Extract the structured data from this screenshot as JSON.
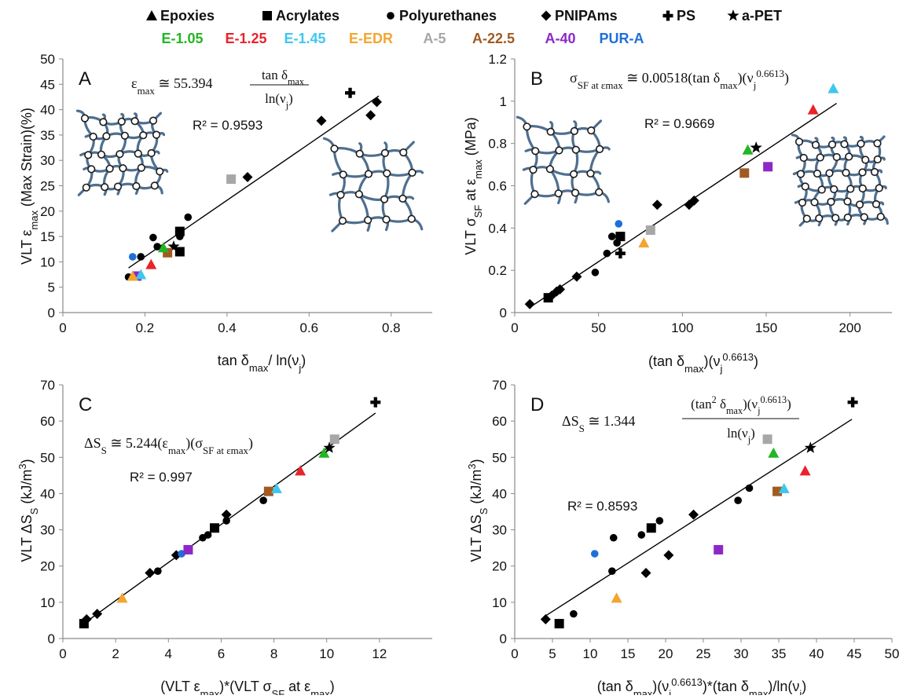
{
  "legend": {
    "shapes": [
      {
        "marker": "triangle",
        "label": "Epoxies"
      },
      {
        "marker": "square",
        "label": "Acrylates"
      },
      {
        "marker": "circle",
        "label": "Polyurethanes"
      },
      {
        "marker": "diamond",
        "label": "PNIPAms"
      },
      {
        "marker": "cross",
        "label": "PS"
      },
      {
        "marker": "star",
        "label": "a-PET"
      }
    ],
    "materials": [
      {
        "label": "E-1.05",
        "color": "#22b622"
      },
      {
        "label": "E-1.25",
        "color": "#e8232a"
      },
      {
        "label": "E-1.45",
        "color": "#3fc6ef"
      },
      {
        "label": "E-EDR",
        "color": "#f3a530"
      },
      {
        "label": "A-5",
        "color": "#a7a7a7"
      },
      {
        "label": "A-22.5",
        "color": "#a25a21"
      },
      {
        "label": "A-40",
        "color": "#8d28c7"
      },
      {
        "label": "PUR-A",
        "color": "#1f6fd9"
      }
    ]
  },
  "icons": {
    "network_sparse": "polymer-network-sparse-icon",
    "network_dense": "polymer-network-dense-icon"
  },
  "chart_data": [
    {
      "type": "scatter",
      "panel": "A",
      "xlabel": "tan δmax/ ln(νj)",
      "ylabel": "VLT εmax (Max Strain)(%)",
      "xlim": [
        0,
        0.9
      ],
      "ylim": [
        0,
        50
      ],
      "xticks": [
        0,
        0.2,
        0.4,
        0.6,
        0.8
      ],
      "yticks": [
        0,
        5,
        10,
        15,
        20,
        25,
        30,
        35,
        40,
        45,
        50
      ],
      "xtick_labels": [
        "0",
        "0.2",
        "0.4",
        "0.6",
        "0.8"
      ],
      "ytick_labels": [
        "0",
        "5",
        "10",
        "15",
        "20",
        "25",
        "30",
        "35",
        "40",
        "45",
        "50"
      ],
      "r2": "R² = 0.9593",
      "equation": "εmax ≅ 55.394 tan δmax / ln(νj)",
      "trendline": [
        [
          0.16,
          8.8
        ],
        [
          0.77,
          42.7
        ]
      ],
      "points": [
        {
          "x": 0.16,
          "y": 7.0,
          "m": "circle",
          "c": "#000000"
        },
        {
          "x": 0.19,
          "y": 11.0,
          "m": "circle",
          "c": "#000000"
        },
        {
          "x": 0.22,
          "y": 14.8,
          "m": "circle",
          "c": "#000000"
        },
        {
          "x": 0.23,
          "y": 13.0,
          "m": "circle",
          "c": "#000000"
        },
        {
          "x": 0.285,
          "y": 15.0,
          "m": "circle",
          "c": "#000000"
        },
        {
          "x": 0.305,
          "y": 18.8,
          "m": "circle",
          "c": "#000000"
        },
        {
          "x": 0.45,
          "y": 26.7,
          "m": "diamond",
          "c": "#000000"
        },
        {
          "x": 0.63,
          "y": 37.8,
          "m": "diamond",
          "c": "#000000"
        },
        {
          "x": 0.75,
          "y": 38.9,
          "m": "diamond",
          "c": "#000000"
        },
        {
          "x": 0.765,
          "y": 41.5,
          "m": "diamond",
          "c": "#000000"
        },
        {
          "x": 0.7,
          "y": 43.3,
          "m": "cross",
          "c": "#000000"
        },
        {
          "x": 0.27,
          "y": 13.0,
          "m": "star",
          "c": "#000000"
        },
        {
          "x": 0.285,
          "y": 16.0,
          "m": "square",
          "c": "#000000"
        },
        {
          "x": 0.285,
          "y": 12.0,
          "m": "square",
          "c": "#000000"
        },
        {
          "x": 0.41,
          "y": 26.3,
          "m": "square",
          "c": "#a7a7a7"
        },
        {
          "x": 0.255,
          "y": 11.8,
          "m": "square",
          "c": "#a25a21"
        },
        {
          "x": 0.18,
          "y": 7.2,
          "m": "square",
          "c": "#8d28c7"
        },
        {
          "x": 0.17,
          "y": 11.0,
          "m": "circle",
          "c": "#1f6fd9"
        },
        {
          "x": 0.245,
          "y": 12.8,
          "m": "triangle",
          "c": "#22b622"
        },
        {
          "x": 0.215,
          "y": 9.5,
          "m": "triangle",
          "c": "#e8232a"
        },
        {
          "x": 0.19,
          "y": 7.5,
          "m": "triangle",
          "c": "#3fc6ef"
        },
        {
          "x": 0.17,
          "y": 7.2,
          "m": "triangle",
          "c": "#f3a530"
        }
      ]
    },
    {
      "type": "scatter",
      "panel": "B",
      "xlabel": "(tan δmax)(νj^0.6613)",
      "ylabel": "VLT σSF at εmax (MPa)",
      "xlim": [
        0,
        225
      ],
      "ylim": [
        0,
        1.2
      ],
      "xticks": [
        0,
        50,
        100,
        150,
        200
      ],
      "yticks": [
        0,
        0.2,
        0.4,
        0.6,
        0.8,
        1,
        1.2
      ],
      "xtick_labels": [
        "0",
        "50",
        "100",
        "150",
        "200"
      ],
      "ytick_labels": [
        "0",
        "0.2",
        "0.4",
        "0.6",
        "0.8",
        "1",
        "1.2"
      ],
      "r2": "R² = 0.9669",
      "equation": "σSF at εmax ≅ 0.00518(tan δmax)(νj^0.6613)",
      "trendline": [
        [
          10,
          0.03
        ],
        [
          192,
          0.99
        ]
      ],
      "points": [
        {
          "x": 9,
          "y": 0.04,
          "m": "diamond",
          "c": "#000000"
        },
        {
          "x": 22,
          "y": 0.08,
          "m": "diamond",
          "c": "#000000"
        },
        {
          "x": 25,
          "y": 0.1,
          "m": "diamond",
          "c": "#000000"
        },
        {
          "x": 27,
          "y": 0.11,
          "m": "diamond",
          "c": "#000000"
        },
        {
          "x": 37,
          "y": 0.17,
          "m": "diamond",
          "c": "#000000"
        },
        {
          "x": 85,
          "y": 0.51,
          "m": "diamond",
          "c": "#000000"
        },
        {
          "x": 104,
          "y": 0.51,
          "m": "diamond",
          "c": "#000000"
        },
        {
          "x": 107,
          "y": 0.53,
          "m": "diamond",
          "c": "#000000"
        },
        {
          "x": 20,
          "y": 0.07,
          "m": "square",
          "c": "#000000"
        },
        {
          "x": 48,
          "y": 0.19,
          "m": "circle",
          "c": "#000000"
        },
        {
          "x": 55,
          "y": 0.28,
          "m": "circle",
          "c": "#000000"
        },
        {
          "x": 58,
          "y": 0.36,
          "m": "circle",
          "c": "#000000"
        },
        {
          "x": 61,
          "y": 0.33,
          "m": "circle",
          "c": "#000000"
        },
        {
          "x": 63,
          "y": 0.36,
          "m": "square",
          "c": "#000000"
        },
        {
          "x": 63,
          "y": 0.28,
          "m": "cross",
          "c": "#000000"
        },
        {
          "x": 62,
          "y": 0.42,
          "m": "circle",
          "c": "#1f6fd9"
        },
        {
          "x": 77,
          "y": 0.33,
          "m": "triangle",
          "c": "#f3a530"
        },
        {
          "x": 81,
          "y": 0.39,
          "m": "square",
          "c": "#a7a7a7"
        },
        {
          "x": 137,
          "y": 0.66,
          "m": "square",
          "c": "#a25a21"
        },
        {
          "x": 139,
          "y": 0.77,
          "m": "triangle",
          "c": "#22b622"
        },
        {
          "x": 144,
          "y": 0.78,
          "m": "star",
          "c": "#000000"
        },
        {
          "x": 151,
          "y": 0.69,
          "m": "square",
          "c": "#8d28c7"
        },
        {
          "x": 178,
          "y": 0.96,
          "m": "triangle",
          "c": "#e8232a"
        },
        {
          "x": 190,
          "y": 1.06,
          "m": "triangle",
          "c": "#3fc6ef"
        }
      ]
    },
    {
      "type": "scatter",
      "panel": "C",
      "xlabel": "(VLT εmax)*(VLT σSF at εmax)",
      "ylabel": "VLT ΔSS (kJ/m³)",
      "xlim": [
        0,
        14
      ],
      "ylim": [
        0,
        70
      ],
      "xticks": [
        0,
        2,
        4,
        6,
        8,
        10,
        12
      ],
      "yticks": [
        0,
        10,
        20,
        30,
        40,
        50,
        60,
        70
      ],
      "xtick_labels": [
        "0",
        "2",
        "4",
        "6",
        "8",
        "10",
        "12"
      ],
      "ytick_labels": [
        "0",
        "10",
        "20",
        "30",
        "40",
        "50",
        "60",
        "70"
      ],
      "r2": "R² = 0.997",
      "equation": "ΔSS ≅ 5.244(εmax)(σSF at εmax)",
      "trendline": [
        [
          0.75,
          3.9
        ],
        [
          11.85,
          62.2
        ]
      ],
      "points": [
        {
          "x": 0.8,
          "y": 4.1,
          "m": "square",
          "c": "#000000"
        },
        {
          "x": 0.9,
          "y": 5.3,
          "m": "diamond",
          "c": "#000000"
        },
        {
          "x": 1.3,
          "y": 6.8,
          "m": "diamond",
          "c": "#000000"
        },
        {
          "x": 2.25,
          "y": 11.2,
          "m": "triangle",
          "c": "#f3a530"
        },
        {
          "x": 3.3,
          "y": 18.1,
          "m": "diamond",
          "c": "#000000"
        },
        {
          "x": 3.6,
          "y": 18.6,
          "m": "circle",
          "c": "#000000"
        },
        {
          "x": 4.3,
          "y": 23.0,
          "m": "diamond",
          "c": "#000000"
        },
        {
          "x": 4.5,
          "y": 23.4,
          "m": "circle",
          "c": "#1f6fd9"
        },
        {
          "x": 4.75,
          "y": 24.5,
          "m": "square",
          "c": "#8d28c7"
        },
        {
          "x": 5.3,
          "y": 27.8,
          "m": "circle",
          "c": "#000000"
        },
        {
          "x": 5.5,
          "y": 28.6,
          "m": "circle",
          "c": "#000000"
        },
        {
          "x": 5.75,
          "y": 30.5,
          "m": "square",
          "c": "#000000"
        },
        {
          "x": 6.2,
          "y": 32.5,
          "m": "circle",
          "c": "#000000"
        },
        {
          "x": 6.2,
          "y": 34.2,
          "m": "diamond",
          "c": "#000000"
        },
        {
          "x": 7.6,
          "y": 38.1,
          "m": "circle",
          "c": "#000000"
        },
        {
          "x": 7.8,
          "y": 40.6,
          "m": "square",
          "c": "#a25a21"
        },
        {
          "x": 8.1,
          "y": 41.4,
          "m": "triangle",
          "c": "#3fc6ef"
        },
        {
          "x": 9.0,
          "y": 46.3,
          "m": "triangle",
          "c": "#e8232a"
        },
        {
          "x": 9.9,
          "y": 51.2,
          "m": "triangle",
          "c": "#22b622"
        },
        {
          "x": 10.1,
          "y": 52.6,
          "m": "star",
          "c": "#000000"
        },
        {
          "x": 10.3,
          "y": 55.0,
          "m": "square",
          "c": "#a7a7a7"
        },
        {
          "x": 11.85,
          "y": 65.2,
          "m": "cross",
          "c": "#000000"
        }
      ]
    },
    {
      "type": "scatter",
      "panel": "D",
      "xlabel": "(tan δmax)(νj^0.6613)*(tan δmax)/ln(νj)",
      "ylabel": "VLT ΔSS (kJ/m³)",
      "xlim": [
        0,
        50
      ],
      "ylim": [
        0,
        70
      ],
      "xticks": [
        0,
        5,
        10,
        15,
        20,
        25,
        30,
        35,
        40,
        45,
        50
      ],
      "yticks": [
        0,
        10,
        20,
        30,
        40,
        50,
        60,
        70
      ],
      "xtick_labels": [
        "0",
        "5",
        "10",
        "15",
        "20",
        "25",
        "30",
        "35",
        "40",
        "45",
        "50"
      ],
      "ytick_labels": [
        "0",
        "10",
        "20",
        "30",
        "40",
        "50",
        "60",
        "70"
      ],
      "r2": "R² = 0.8593",
      "equation": "ΔSS ≅ 1.344 (tan² δmax)(νj^0.6613) / ln(νj)",
      "trendline": [
        [
          4.2,
          6.4
        ],
        [
          44.7,
          60.5
        ]
      ],
      "points": [
        {
          "x": 4.1,
          "y": 5.3,
          "m": "diamond",
          "c": "#000000"
        },
        {
          "x": 5.9,
          "y": 4.1,
          "m": "square",
          "c": "#000000"
        },
        {
          "x": 7.8,
          "y": 6.8,
          "m": "circle",
          "c": "#000000"
        },
        {
          "x": 10.6,
          "y": 23.4,
          "m": "circle",
          "c": "#1f6fd9"
        },
        {
          "x": 12.9,
          "y": 18.6,
          "m": "circle",
          "c": "#000000"
        },
        {
          "x": 13.1,
          "y": 27.8,
          "m": "circle",
          "c": "#000000"
        },
        {
          "x": 13.5,
          "y": 11.2,
          "m": "triangle",
          "c": "#f3a530"
        },
        {
          "x": 16.8,
          "y": 28.6,
          "m": "circle",
          "c": "#000000"
        },
        {
          "x": 17.4,
          "y": 18.1,
          "m": "diamond",
          "c": "#000000"
        },
        {
          "x": 18.1,
          "y": 30.5,
          "m": "square",
          "c": "#000000"
        },
        {
          "x": 19.2,
          "y": 32.5,
          "m": "circle",
          "c": "#000000"
        },
        {
          "x": 20.4,
          "y": 23.0,
          "m": "diamond",
          "c": "#000000"
        },
        {
          "x": 23.7,
          "y": 34.2,
          "m": "diamond",
          "c": "#000000"
        },
        {
          "x": 27.0,
          "y": 24.5,
          "m": "square",
          "c": "#8d28c7"
        },
        {
          "x": 29.6,
          "y": 38.1,
          "m": "circle",
          "c": "#000000"
        },
        {
          "x": 31.1,
          "y": 41.5,
          "m": "circle",
          "c": "#000000"
        },
        {
          "x": 33.5,
          "y": 55.0,
          "m": "square",
          "c": "#a7a7a7"
        },
        {
          "x": 34.3,
          "y": 51.2,
          "m": "triangle",
          "c": "#22b622"
        },
        {
          "x": 34.8,
          "y": 40.6,
          "m": "square",
          "c": "#a25a21"
        },
        {
          "x": 35.7,
          "y": 41.4,
          "m": "triangle",
          "c": "#3fc6ef"
        },
        {
          "x": 38.5,
          "y": 46.3,
          "m": "triangle",
          "c": "#e8232a"
        },
        {
          "x": 39.2,
          "y": 52.6,
          "m": "star",
          "c": "#000000"
        },
        {
          "x": 44.8,
          "y": 65.2,
          "m": "cross",
          "c": "#000000"
        }
      ]
    }
  ]
}
